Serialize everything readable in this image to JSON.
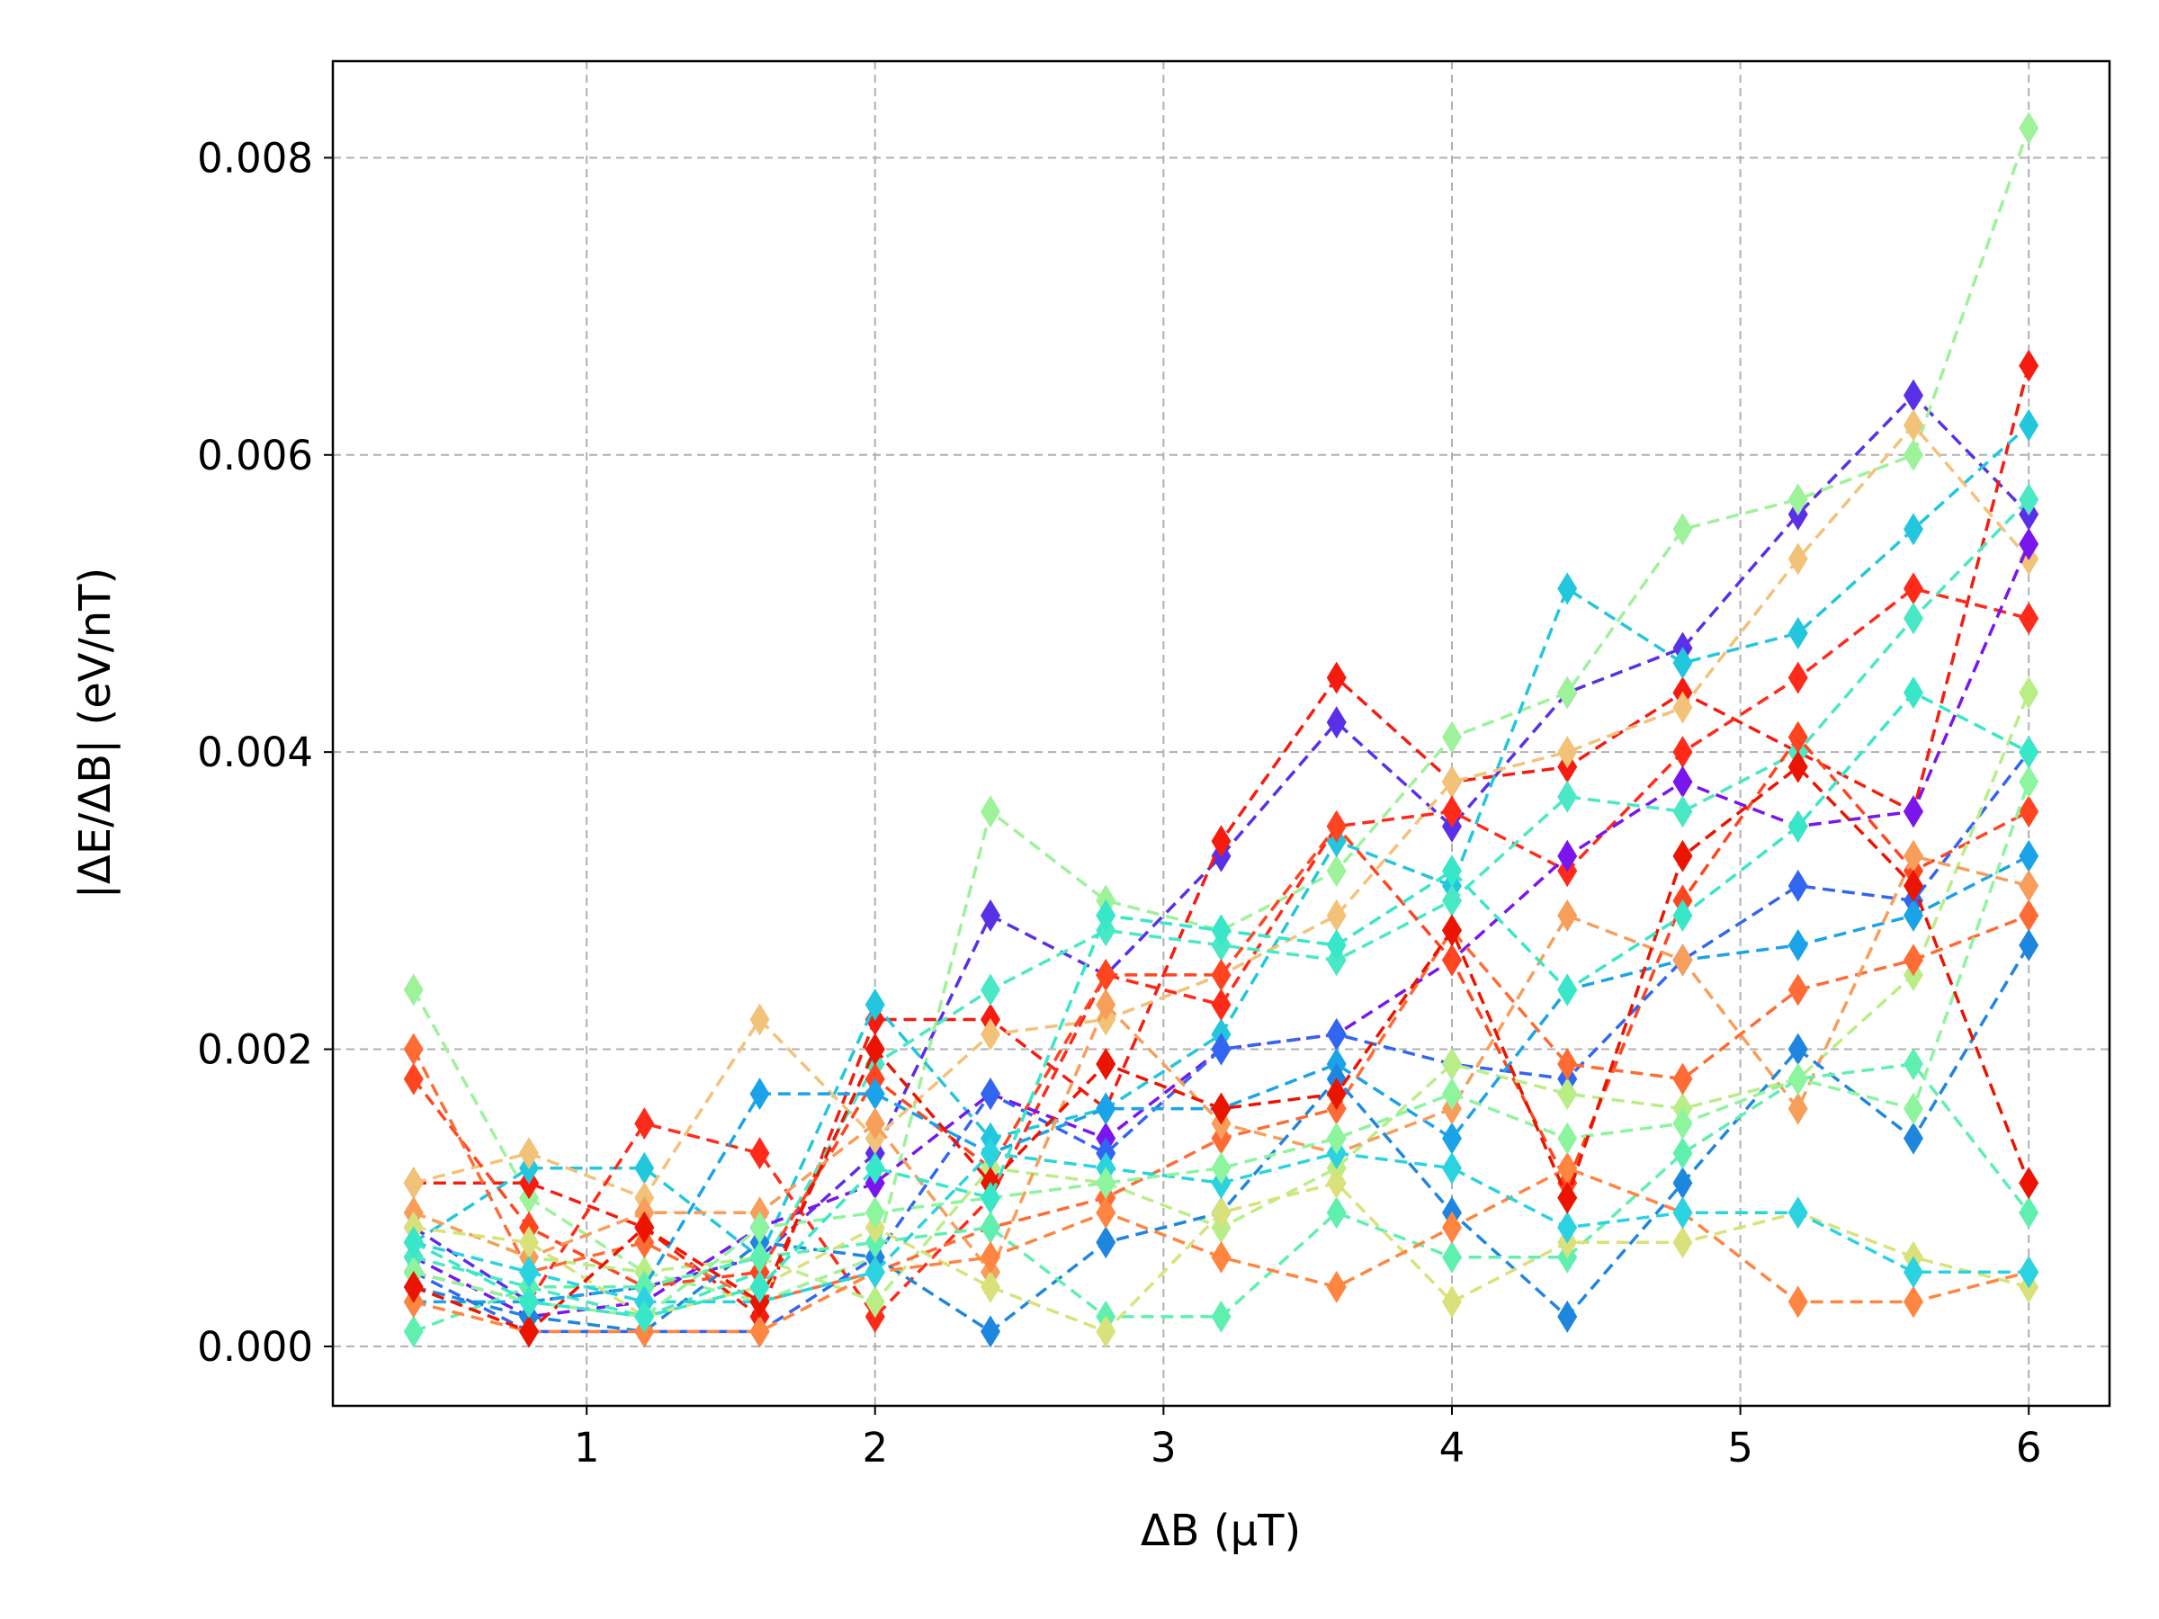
{
  "chart_data": {
    "type": "line",
    "title": "",
    "xlabel": "ΔB (μT)",
    "ylabel": "|ΔE/ΔB| (eV/nT)",
    "xlim": [
      0.12,
      6.28
    ],
    "ylim": [
      -0.0004,
      0.00865
    ],
    "xticks": [
      1,
      2,
      3,
      4,
      5,
      6
    ],
    "xtick_labels": [
      "1",
      "2",
      "3",
      "4",
      "5",
      "6"
    ],
    "yticks": [
      0,
      0.002,
      0.004,
      0.006,
      0.008
    ],
    "ytick_labels": [
      "0.000",
      "0.002",
      "0.004",
      "0.006",
      "0.008"
    ],
    "grid": true,
    "legend": "none",
    "line_style": "dashed",
    "marker": "diamond",
    "x": [
      0.4,
      0.8,
      1.2,
      1.6,
      2.0,
      2.4,
      2.8,
      3.2,
      3.6,
      4.0,
      4.4,
      4.8,
      5.2,
      5.6,
      6.0
    ],
    "series": [
      {
        "color": "#5a2fe8",
        "values": [
          0.0008,
          0.0003,
          0.0004,
          0.0006,
          0.0013,
          0.0029,
          0.0025,
          0.0033,
          0.0042,
          0.0035,
          0.0044,
          0.0047,
          0.0056,
          0.0064,
          0.0056
        ]
      },
      {
        "color": "#9df29a",
        "values": [
          0.0024,
          0.001,
          0.0005,
          0.0003,
          0.0006,
          0.0036,
          0.003,
          0.0028,
          0.0032,
          0.0041,
          0.0044,
          0.0055,
          0.0057,
          0.006,
          0.0082
        ]
      },
      {
        "color": "#f51c0f",
        "values": [
          0.0011,
          0.0011,
          0.0008,
          0.0002,
          0.0022,
          0.0022,
          0.0016,
          0.0034,
          0.0045,
          0.0038,
          0.0039,
          0.0044,
          0.004,
          0.0036,
          0.0066
        ]
      },
      {
        "color": "#22c6dd",
        "values": [
          0.0007,
          0.0012,
          0.0012,
          0.0006,
          0.0023,
          0.0014,
          0.0016,
          0.0021,
          0.0034,
          0.0031,
          0.0051,
          0.0046,
          0.0048,
          0.0055,
          0.0062
        ]
      },
      {
        "color": "#f2c278",
        "values": [
          0.0011,
          0.0013,
          0.001,
          0.0022,
          0.0014,
          0.0021,
          0.0022,
          0.0025,
          0.0029,
          0.0038,
          0.004,
          0.0043,
          0.0053,
          0.0062,
          0.0053
        ]
      },
      {
        "color": "#ff2a1a",
        "values": [
          0.0005,
          0.0003,
          0.0015,
          0.0013,
          0.0002,
          0.001,
          0.0025,
          0.0023,
          0.0035,
          0.0036,
          0.0032,
          0.004,
          0.0045,
          0.0051,
          0.0049
        ]
      },
      {
        "color": "#7a16ec",
        "values": [
          0.0006,
          0.0002,
          0.0003,
          0.0008,
          0.0011,
          0.0017,
          0.0014,
          0.002,
          0.0021,
          0.0026,
          0.0033,
          0.0038,
          0.0035,
          0.0036,
          0.0054
        ]
      },
      {
        "color": "#4ae8c4",
        "values": [
          0.0006,
          0.0004,
          0.0002,
          0.0005,
          0.0019,
          0.0024,
          0.0028,
          0.0027,
          0.0026,
          0.003,
          0.0037,
          0.0036,
          0.004,
          0.0049,
          0.0057
        ]
      },
      {
        "color": "#ff4520",
        "values": [
          0.0018,
          0.0008,
          0.0004,
          0.0005,
          0.0018,
          0.0012,
          0.0025,
          0.0025,
          0.0035,
          0.0026,
          0.0011,
          0.003,
          0.0041,
          0.0032,
          0.0036
        ]
      },
      {
        "color": "#3366f0",
        "values": [
          0.0005,
          0.0001,
          0.0001,
          0.0001,
          0.0006,
          0.0017,
          0.0013,
          0.002,
          0.0021,
          0.0019,
          0.0018,
          0.0026,
          0.0031,
          0.003,
          0.004
        ]
      },
      {
        "color": "#b9ee86",
        "values": [
          0.0009,
          0.0006,
          0.0005,
          0.0006,
          0.0003,
          0.0012,
          0.0011,
          0.0008,
          0.0012,
          0.0019,
          0.0017,
          0.0016,
          0.0018,
          0.0025,
          0.0044
        ]
      },
      {
        "color": "#1aa3e8",
        "values": [
          0.0003,
          0.0003,
          0.0004,
          0.0017,
          0.0017,
          0.0013,
          0.0016,
          0.0016,
          0.0019,
          0.0014,
          0.0024,
          0.0026,
          0.0027,
          0.0029,
          0.0033
        ]
      },
      {
        "color": "#ff6b35",
        "values": [
          0.002,
          0.0005,
          0.0007,
          0.0003,
          0.0005,
          0.0008,
          0.001,
          0.0014,
          0.0016,
          0.0028,
          0.0019,
          0.0018,
          0.0024,
          0.0026,
          0.0029
        ]
      },
      {
        "color": "#f79e5a",
        "values": [
          0.0009,
          0.0006,
          0.0009,
          0.0009,
          0.0015,
          0.0005,
          0.0023,
          0.0015,
          0.0013,
          0.0016,
          0.0029,
          0.0026,
          0.0016,
          0.0033,
          0.0031
        ]
      },
      {
        "color": "#1f86e0",
        "values": [
          0.0004,
          0.0002,
          0.0001,
          0.0007,
          0.0006,
          0.0001,
          0.0007,
          0.0009,
          0.0018,
          0.0009,
          0.0002,
          0.0011,
          0.002,
          0.0014,
          0.0027
        ]
      },
      {
        "color": "#5ff0b0",
        "values": [
          0.0001,
          0.0004,
          0.0004,
          0.0006,
          0.0007,
          0.0008,
          0.0002,
          0.0002,
          0.0009,
          0.0006,
          0.0006,
          0.0013,
          0.0018,
          0.0019,
          0.0009
        ]
      },
      {
        "color": "#d9e27a",
        "values": [
          0.0008,
          0.0007,
          0.0002,
          0.0004,
          0.0008,
          0.0004,
          0.0001,
          0.0009,
          0.0011,
          0.0003,
          0.0007,
          0.0007,
          0.0009,
          0.0006,
          0.0004
        ]
      },
      {
        "color": "#ff8540",
        "values": [
          0.0003,
          0.0001,
          0.0001,
          0.0001,
          0.0005,
          0.0006,
          0.0009,
          0.0006,
          0.0004,
          0.0008,
          0.0012,
          0.0009,
          0.0003,
          0.0003,
          0.0005
        ]
      },
      {
        "color": "#2bd3e0",
        "values": [
          0.0007,
          0.0005,
          0.0003,
          0.0003,
          0.0005,
          0.0013,
          0.0012,
          0.0011,
          0.0013,
          0.0012,
          0.0008,
          0.0009,
          0.0009,
          0.0005,
          0.0005
        ]
      },
      {
        "color": "#8cf59e",
        "values": [
          0.0005,
          0.0003,
          0.0002,
          0.0008,
          0.0009,
          0.001,
          0.0011,
          0.0012,
          0.0014,
          0.0017,
          0.0014,
          0.0015,
          0.0018,
          0.0016,
          0.0038
        ]
      },
      {
        "color": "#eb1400",
        "values": [
          0.0004,
          0.0001,
          0.0008,
          0.0003,
          0.002,
          0.0011,
          0.0019,
          0.0016,
          0.0017,
          0.0028,
          0.001,
          0.0033,
          0.0039,
          0.0031,
          0.0011
        ]
      },
      {
        "color": "#38e6c8",
        "values": [
          0.0007,
          0.0003,
          0.0002,
          0.0004,
          0.0012,
          0.001,
          0.0029,
          0.0028,
          0.0027,
          0.0032,
          0.0024,
          0.0029,
          0.0035,
          0.0044,
          0.004
        ]
      }
    ]
  }
}
